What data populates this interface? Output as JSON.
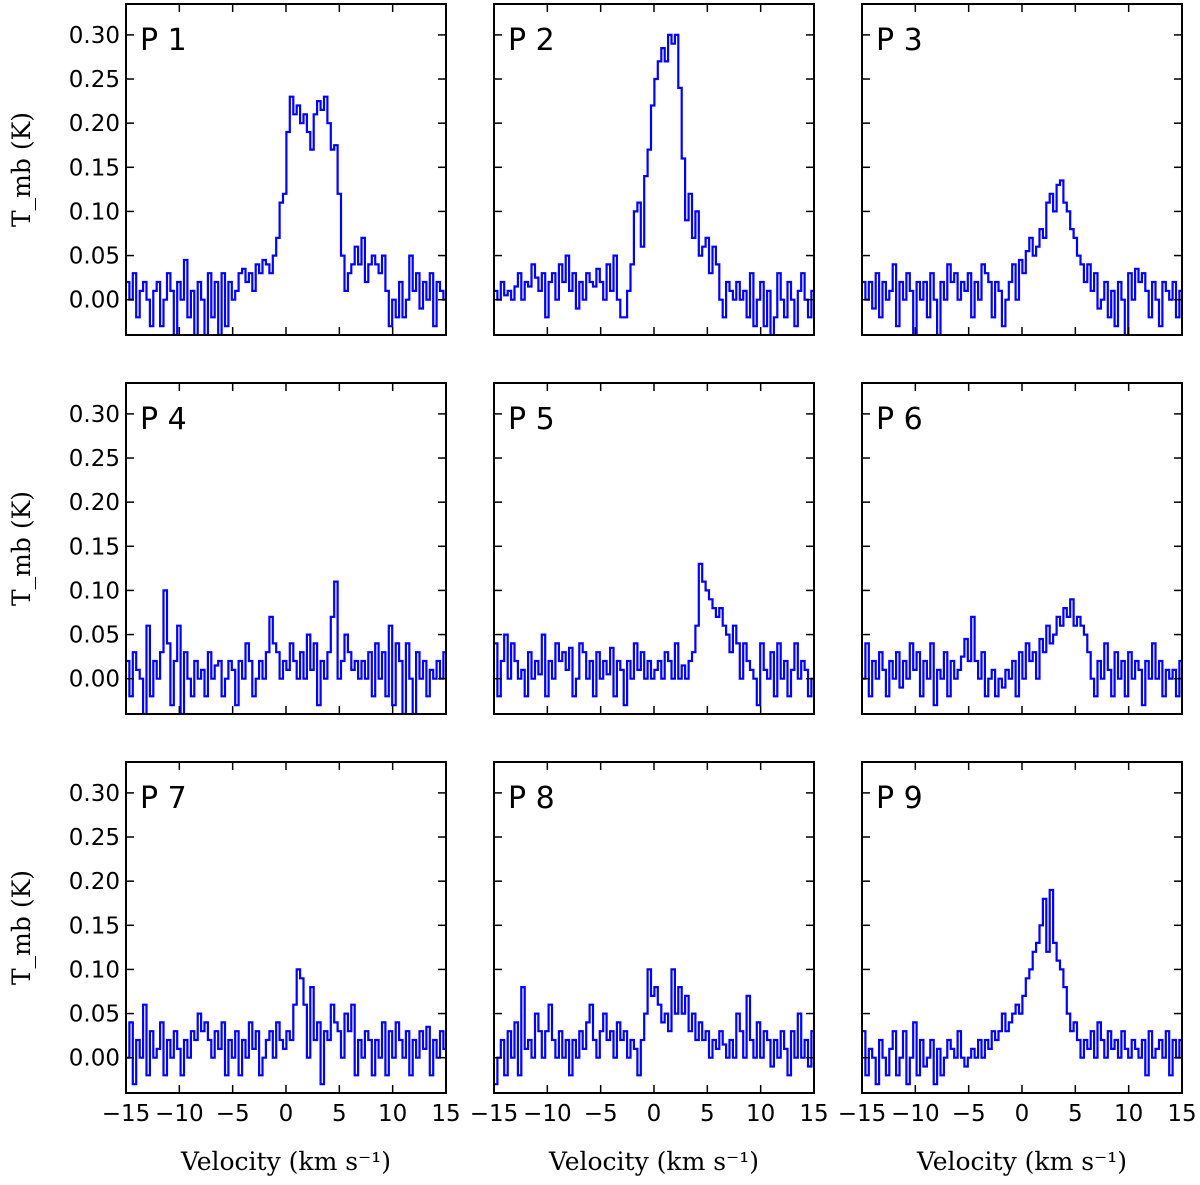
{
  "chart_data": {
    "type": "line",
    "layout": "3x3 grid",
    "xlabel": "Velocity (km s⁻¹)",
    "ylabel": "T_mb (K)",
    "xlim": [
      -15,
      15
    ],
    "ylim": [
      -0.04,
      0.335
    ],
    "xticks": [
      -15,
      -10,
      -5,
      0,
      5,
      10,
      15
    ],
    "xtick_labels": [
      "−15",
      "−10",
      "−5",
      "0",
      "5",
      "10",
      "15"
    ],
    "yticks": [
      0.0,
      0.05,
      0.1,
      0.15,
      0.2,
      0.25,
      0.3
    ],
    "ytick_labels": [
      "0.00",
      "0.05",
      "0.10",
      "0.15",
      "0.20",
      "0.25",
      "0.30"
    ],
    "line_color": "#0000ff",
    "grid": false,
    "panels": [
      {
        "label": "P 1",
        "x_start": -15,
        "dx": 0.32,
        "values": [
          0.02,
          0.0,
          0.03,
          -0.02,
          0.01,
          0.02,
          0.0,
          -0.03,
          0.01,
          0.02,
          -0.03,
          0.0,
          0.03,
          0.01,
          -0.04,
          0.02,
          0.0,
          0.045,
          -0.02,
          0.01,
          -0.04,
          0.02,
          0.0,
          -0.04,
          0.03,
          -0.02,
          0.02,
          -0.04,
          0.03,
          -0.03,
          0.02,
          0.0,
          0.01,
          0.03,
          0.035,
          0.02,
          0.03,
          0.01,
          0.04,
          0.03,
          0.045,
          0.04,
          0.03,
          0.05,
          0.07,
          0.11,
          0.12,
          0.19,
          0.23,
          0.21,
          0.22,
          0.2,
          0.21,
          0.19,
          0.17,
          0.21,
          0.225,
          0.215,
          0.23,
          0.2,
          0.17,
          0.175,
          0.12,
          0.05,
          0.01,
          0.03,
          0.04,
          0.06,
          0.04,
          0.07,
          0.02,
          0.04,
          0.05,
          0.04,
          0.03,
          0.05,
          0.01,
          -0.03,
          0.0,
          -0.02,
          0.02,
          -0.02,
          0.0,
          0.05,
          0.01,
          0.03,
          -0.01,
          0.02,
          0.0,
          0.03,
          -0.03,
          0.02,
          0.01,
          0.0,
          0.03,
          -0.02,
          0.02,
          -0.03,
          0.035,
          0.03,
          -0.02,
          0.02,
          0.0,
          0.03,
          -0.03,
          0.02,
          0.04,
          0.0,
          0.01,
          -0.02,
          0.02,
          0.0,
          -0.02,
          0.01,
          0.0,
          0.02,
          0.0,
          -0.02,
          0.01,
          0.03,
          0.005,
          0.0,
          0.01,
          -0.02,
          0.0
        ]
      },
      {
        "label": "P 2",
        "x_start": -15,
        "dx": 0.32,
        "values": [
          0.01,
          0.0,
          0.02,
          0.005,
          0.01,
          0.0,
          0.015,
          0.03,
          0.0,
          0.02,
          0.015,
          0.04,
          0.025,
          0.01,
          0.03,
          -0.02,
          0.02,
          0.03,
          0.0,
          0.04,
          0.02,
          0.05,
          0.01,
          0.03,
          -0.01,
          0.02,
          0.0,
          0.03,
          0.02,
          0.015,
          0.035,
          0.02,
          0.0,
          0.04,
          0.01,
          0.05,
          0.0,
          -0.02,
          -0.02,
          0.01,
          0.04,
          0.1,
          0.11,
          0.06,
          0.14,
          0.17,
          0.22,
          0.25,
          0.27,
          0.285,
          0.27,
          0.3,
          0.29,
          0.3,
          0.24,
          0.16,
          0.09,
          0.12,
          0.07,
          0.1,
          0.05,
          0.06,
          0.07,
          0.03,
          0.06,
          0.04,
          0.0,
          -0.02,
          0.02,
          0.01,
          0.0,
          0.02,
          0.0,
          0.01,
          -0.02,
          0.03,
          -0.03,
          0.0,
          0.02,
          -0.03,
          0.01,
          -0.04,
          -0.02,
          0.03,
          0.0,
          -0.02,
          0.02,
          0.0,
          -0.03,
          0.01,
          0.03,
          0.0,
          -0.02,
          0.01,
          0.02,
          -0.01,
          0.02,
          0.0,
          0.03,
          -0.02,
          0.02,
          -0.01,
          0.01,
          0.0,
          0.02,
          -0.03,
          0.02,
          0.015,
          0.035,
          -0.02,
          0.02,
          0.0,
          -0.02,
          -0.03,
          0.02,
          0.0,
          0.015,
          0.0,
          -0.01,
          0.02,
          0.01,
          0.0,
          -0.01,
          0.01,
          0.03
        ]
      },
      {
        "label": "P 3",
        "x_start": -15,
        "dx": 0.32,
        "values": [
          0.02,
          0.0,
          0.02,
          -0.01,
          0.03,
          -0.02,
          0.02,
          0.0,
          0.01,
          0.04,
          -0.03,
          0.02,
          0.0,
          0.03,
          0.01,
          -0.04,
          0.02,
          0.0,
          0.02,
          -0.02,
          0.03,
          0.0,
          -0.04,
          0.02,
          0.0,
          0.04,
          0.02,
          0.03,
          0.0,
          0.02,
          0.01,
          0.03,
          -0.02,
          0.02,
          0.0,
          0.04,
          0.03,
          0.02,
          -0.02,
          0.02,
          0.01,
          -0.03,
          0.0,
          0.02,
          0.04,
          0.0,
          0.045,
          0.03,
          0.055,
          0.07,
          0.05,
          0.06,
          0.08,
          0.07,
          0.11,
          0.12,
          0.1,
          0.13,
          0.135,
          0.11,
          0.1,
          0.08,
          0.07,
          0.05,
          0.04,
          0.02,
          0.04,
          0.01,
          0.03,
          -0.01,
          0.0,
          0.02,
          -0.02,
          0.01,
          -0.03,
          0.02,
          0.0,
          -0.04,
          0.03,
          0.0,
          0.035,
          0.02,
          0.03,
          0.01,
          -0.02,
          0.02,
          0.0,
          -0.03,
          0.02,
          0.01,
          0.0,
          0.02,
          -0.02,
          0.01,
          0.0,
          0.02,
          -0.02,
          0.0,
          0.01,
          -0.03,
          0.02,
          0.0,
          0.01,
          -0.02,
          0.01,
          0.02,
          -0.01,
          0.0,
          0.01,
          0.02,
          0.0,
          0.015,
          0.005,
          0.02,
          0.01,
          0.0,
          0.015,
          0.02,
          0.01,
          0.015,
          0.005,
          0.01,
          0.015,
          0.02,
          0.01
        ]
      },
      {
        "label": "P 4",
        "x_start": -15,
        "dx": 0.32,
        "values": [
          0.02,
          -0.02,
          0.03,
          0.01,
          0.0,
          -0.04,
          0.06,
          -0.02,
          0.02,
          0.0,
          0.03,
          0.1,
          0.04,
          -0.03,
          0.02,
          0.06,
          -0.04,
          0.03,
          0.0,
          -0.02,
          0.02,
          0.0,
          0.01,
          -0.02,
          0.03,
          0.0,
          0.015,
          0.02,
          -0.02,
          0.0,
          0.02,
          0.01,
          -0.03,
          0.02,
          0.0,
          0.04,
          0.02,
          -0.02,
          0.0,
          0.02,
          0.0,
          0.03,
          0.07,
          0.04,
          0.03,
          0.0,
          0.02,
          0.01,
          0.04,
          0.02,
          0.0,
          0.03,
          0.0,
          0.05,
          0.01,
          0.04,
          -0.03,
          0.02,
          0.0,
          0.03,
          0.07,
          0.11,
          0.0,
          0.02,
          0.05,
          0.03,
          0.01,
          0.02,
          0.0,
          0.02,
          0.0,
          0.03,
          -0.02,
          0.04,
          0.0,
          0.03,
          -0.02,
          0.06,
          -0.03,
          0.04,
          0.02,
          -0.04,
          0.04,
          0.0,
          -0.04,
          0.03,
          0.0,
          0.02,
          -0.02,
          0.01,
          0.0,
          0.02,
          0.0,
          0.03,
          0.0,
          0.02,
          -0.02,
          0.02,
          0.0,
          0.01,
          0.03,
          0.01,
          0.05,
          -0.02,
          0.03,
          0.0,
          0.02,
          -0.03,
          0.02,
          0.0,
          0.02,
          0.0,
          0.03,
          0.015,
          0.0,
          0.02,
          0.01,
          0.0,
          0.02,
          -0.02,
          0.01,
          0.0,
          0.02,
          0.01,
          0.02
        ]
      },
      {
        "label": "P 5",
        "x_start": -15,
        "dx": 0.32,
        "values": [
          0.04,
          -0.02,
          0.02,
          0.05,
          0.0,
          0.04,
          0.02,
          0.0,
          0.01,
          -0.02,
          0.03,
          0.0,
          0.02,
          0.005,
          0.05,
          -0.02,
          0.02,
          0.0,
          0.04,
          0.02,
          0.03,
          0.01,
          0.035,
          -0.02,
          0.0,
          0.04,
          0.03,
          0.0,
          0.02,
          -0.02,
          0.03,
          0.0,
          0.02,
          0.005,
          0.035,
          -0.02,
          0.02,
          0.01,
          -0.03,
          0.02,
          0.0,
          0.04,
          0.01,
          0.03,
          0.0,
          0.02,
          0.0,
          0.01,
          0.02,
          0.0,
          0.03,
          0.02,
          0.0,
          0.04,
          0.0,
          0.015,
          0.0,
          0.02,
          0.03,
          0.06,
          0.13,
          0.11,
          0.1,
          0.09,
          0.08,
          0.07,
          0.08,
          0.06,
          0.05,
          0.03,
          0.06,
          0.04,
          0.0,
          0.04,
          0.02,
          0.01,
          0.0,
          -0.03,
          0.04,
          0.01,
          0.0,
          0.03,
          -0.02,
          0.04,
          0.0,
          0.02,
          -0.02,
          0.01,
          0.04,
          0.0,
          0.02,
          0.01,
          -0.02,
          0.0,
          0.01,
          -0.01,
          0.0,
          -0.005,
          0.0,
          -0.01,
          0.0,
          -0.005,
          0.0,
          0.01,
          0.0,
          0.03,
          0.02,
          0.0,
          0.015,
          -0.02,
          0.02,
          0.01,
          0.03,
          -0.03,
          0.02,
          0.0,
          0.01,
          -0.02,
          0.015,
          0.02,
          -0.01,
          0.01,
          0.0,
          0.02,
          -0.02,
          0.02
        ]
      },
      {
        "label": "P 6",
        "x_start": -15,
        "dx": 0.32,
        "values": [
          0.0,
          0.04,
          -0.02,
          0.02,
          0.0,
          0.03,
          0.01,
          -0.02,
          0.02,
          0.0,
          0.03,
          -0.01,
          0.02,
          0.0,
          0.04,
          0.01,
          0.03,
          -0.02,
          0.02,
          0.0,
          0.04,
          -0.03,
          0.01,
          0.0,
          0.03,
          -0.02,
          0.02,
          0.0,
          0.01,
          0.025,
          0.045,
          0.02,
          0.07,
          0.02,
          0.0,
          0.03,
          -0.02,
          0.0,
          0.01,
          -0.02,
          0.0,
          -0.01,
          0.01,
          0.0,
          0.02,
          -0.02,
          0.03,
          0.0,
          0.04,
          0.02,
          0.03,
          0.0,
          0.045,
          0.03,
          0.06,
          0.04,
          0.05,
          0.07,
          0.06,
          0.08,
          0.07,
          0.09,
          0.06,
          0.07,
          0.06,
          0.05,
          0.03,
          0.0,
          -0.02,
          0.02,
          0.0,
          0.04,
          0.01,
          -0.02,
          0.03,
          0.0,
          0.02,
          -0.02,
          0.03,
          0.0,
          0.02,
          0.01,
          -0.03,
          0.02,
          0.0,
          0.04,
          0.0,
          0.02,
          -0.02,
          0.01,
          0.0,
          0.01,
          -0.02,
          0.02,
          0.0,
          0.01,
          0.03,
          0.0,
          0.02,
          0.0,
          0.05,
          0.03,
          0.02,
          -0.02,
          0.03,
          0.0,
          0.06,
          0.01,
          0.03,
          -0.02,
          0.04,
          0.0,
          0.05,
          0.02,
          0.03,
          0.01,
          0.02,
          0.0,
          0.03,
          0.02,
          0.04,
          0.01,
          0.02,
          0.0,
          0.0
        ]
      },
      {
        "label": "P 7",
        "x_start": -15,
        "dx": 0.32,
        "values": [
          0.0,
          0.04,
          -0.03,
          0.02,
          0.0,
          0.06,
          -0.02,
          0.03,
          0.0,
          0.01,
          0.04,
          -0.02,
          0.02,
          0.0,
          0.03,
          0.01,
          -0.02,
          0.02,
          0.0,
          0.03,
          0.02,
          0.05,
          0.03,
          0.04,
          0.02,
          0.0,
          0.03,
          0.01,
          0.04,
          -0.02,
          0.02,
          0.0,
          0.03,
          -0.02,
          0.02,
          0.0,
          0.04,
          0.01,
          0.03,
          -0.02,
          0.0,
          0.02,
          0.03,
          0.0,
          0.04,
          0.02,
          0.01,
          0.03,
          0.02,
          0.06,
          0.1,
          0.09,
          0.06,
          0.0,
          0.08,
          0.02,
          0.04,
          -0.03,
          0.03,
          0.02,
          0.06,
          0.04,
          0.03,
          0.0,
          0.05,
          0.03,
          0.06,
          -0.02,
          0.02,
          0.0,
          0.03,
          0.02,
          -0.02,
          0.02,
          0.0,
          0.04,
          -0.02,
          0.03,
          0.0,
          0.04,
          0.02,
          0.0,
          0.03,
          -0.02,
          0.02,
          0.0,
          0.03,
          0.01,
          0.035,
          -0.02,
          0.02,
          0.0,
          0.03,
          0.01,
          0.0,
          0.02,
          -0.02,
          0.03,
          0.0,
          0.01,
          0.02,
          0.0,
          0.01,
          -0.02,
          0.02,
          0.0,
          0.01,
          0.02,
          0.0,
          -0.01,
          0.02,
          0.0,
          0.02,
          0.01,
          0.0,
          0.02,
          0.01,
          0.04,
          0.02,
          0.03,
          0.0,
          0.04,
          0.02,
          0.0
        ]
      },
      {
        "label": "P 8",
        "x_start": -15,
        "dx": 0.32,
        "values": [
          -0.03,
          0.0,
          0.02,
          -0.02,
          0.03,
          0.0,
          0.04,
          -0.02,
          0.08,
          0.01,
          0.02,
          0.0,
          0.05,
          0.03,
          0.0,
          0.03,
          0.06,
          0.02,
          0.0,
          0.03,
          0.0,
          0.02,
          -0.02,
          0.02,
          0.0,
          0.03,
          0.01,
          0.04,
          0.06,
          0.02,
          0.0,
          0.03,
          0.05,
          0.02,
          0.03,
          0.0,
          0.04,
          0.02,
          0.03,
          0.0,
          0.02,
          0.01,
          -0.02,
          0.02,
          0.05,
          0.1,
          0.07,
          0.08,
          0.06,
          0.04,
          0.05,
          0.03,
          0.1,
          0.05,
          0.08,
          0.05,
          0.07,
          0.03,
          0.05,
          0.02,
          0.04,
          0.02,
          0.03,
          0.0,
          0.02,
          0.01,
          0.03,
          0.015,
          0.0,
          0.02,
          0.0,
          0.05,
          0.03,
          0.0,
          0.07,
          0.02,
          0.0,
          0.04,
          0.0,
          0.03,
          0.02,
          -0.01,
          0.02,
          0.0,
          0.03,
          0.01,
          -0.02,
          0.03,
          0.0,
          0.05,
          0.0,
          0.02,
          -0.01,
          0.03,
          0.0,
          0.01,
          0.06,
          0.02,
          0.0,
          0.04,
          -0.02,
          0.02,
          0.0,
          0.03,
          0.01,
          -0.02,
          0.02,
          0.03,
          0.0,
          0.04,
          0.02,
          0.0,
          0.03,
          0.01,
          0.02,
          -0.02,
          0.02,
          0.0,
          0.03,
          0.01,
          0.02,
          0.0,
          0.03,
          0.01,
          0.02
        ]
      },
      {
        "label": "P 9",
        "x_start": -15,
        "dx": 0.32,
        "values": [
          0.03,
          -0.02,
          0.01,
          0.0,
          -0.03,
          0.02,
          0.0,
          -0.02,
          0.01,
          0.03,
          -0.02,
          0.0,
          0.03,
          -0.03,
          0.0,
          0.04,
          -0.02,
          0.02,
          -0.01,
          0.0,
          0.02,
          -0.03,
          0.01,
          -0.02,
          0.0,
          0.02,
          0.01,
          0.0,
          0.03,
          0.0,
          -0.01,
          0.0,
          0.01,
          0.0,
          0.02,
          0.0,
          0.02,
          0.01,
          0.03,
          0.02,
          0.03,
          0.05,
          0.03,
          0.04,
          0.05,
          0.06,
          0.05,
          0.07,
          0.09,
          0.1,
          0.12,
          0.13,
          0.15,
          0.18,
          0.12,
          0.19,
          0.13,
          0.11,
          0.1,
          0.08,
          0.05,
          0.03,
          0.04,
          0.02,
          0.0,
          0.02,
          0.01,
          0.03,
          0.0,
          0.04,
          0.02,
          0.0,
          0.03,
          0.01,
          0.02,
          0.0,
          0.03,
          0.01,
          0.0,
          0.02,
          0.01,
          0.0,
          0.02,
          -0.02,
          0.03,
          0.0,
          0.01,
          0.02,
          0.0,
          0.03,
          -0.02,
          0.02,
          0.0,
          0.02,
          0.01,
          -0.02,
          0.03,
          0.0,
          0.02,
          0.01,
          0.035,
          0.0,
          0.02,
          0.01,
          0.03,
          0.0,
          0.02,
          0.04,
          0.02,
          -0.02,
          0.03,
          0.0,
          0.05,
          0.03,
          0.04,
          0.02,
          -0.02,
          0.0,
          0.06,
          0.02,
          0.04,
          0.0,
          0.06,
          0.03,
          0.05
        ]
      }
    ]
  }
}
